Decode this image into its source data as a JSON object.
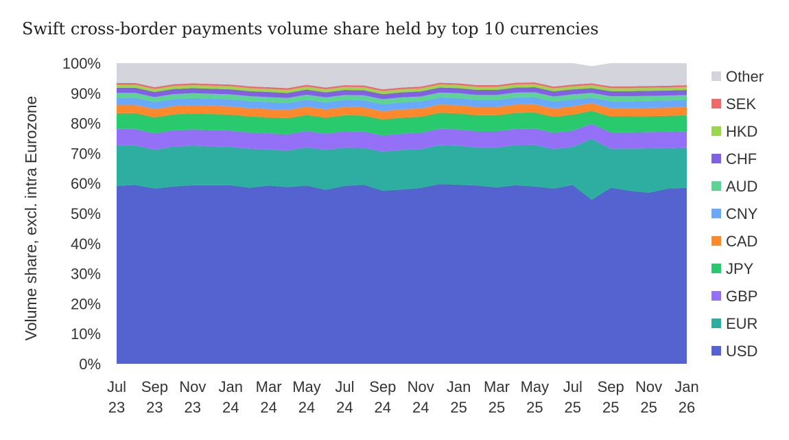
{
  "chart_data": {
    "type": "area",
    "stacked": true,
    "title": "Swift cross-border payments volume share held by top 10 currencies",
    "ylabel": "Volume share, excl. intra Eurozone",
    "xlabel": "",
    "ylim": [
      0,
      100
    ],
    "yticks": [
      "0%",
      "10%",
      "20%",
      "30%",
      "40%",
      "50%",
      "60%",
      "70%",
      "80%",
      "90%",
      "100%"
    ],
    "categories": [
      "Jul 23",
      "Aug 23",
      "Sep 23",
      "Oct 23",
      "Nov 23",
      "Dec 23",
      "Jan 24",
      "Feb 24",
      "Mar 24",
      "Apr 24",
      "May 24",
      "Jun 24",
      "Jul 24",
      "Aug 24",
      "Sep 24",
      "Oct 24",
      "Nov 24",
      "Dec 24",
      "Jan 25",
      "Feb 25",
      "Mar 25",
      "Apr 25",
      "May 25",
      "Jun 25",
      "Jul 25",
      "Aug 25",
      "Sep 25",
      "Oct 25",
      "Nov 25",
      "Dec 25",
      "Jan 26"
    ],
    "xticks": [
      [
        "Jul",
        "23"
      ],
      [
        "Sep",
        "23"
      ],
      [
        "Nov",
        "23"
      ],
      [
        "Jan",
        "24"
      ],
      [
        "Mar",
        "24"
      ],
      [
        "May",
        "24"
      ],
      [
        "Jul",
        "24"
      ],
      [
        "Sep",
        "24"
      ],
      [
        "Nov",
        "24"
      ],
      [
        "Jan",
        "25"
      ],
      [
        "Mar",
        "25"
      ],
      [
        "May",
        "25"
      ],
      [
        "Jul",
        "25"
      ],
      [
        "Sep",
        "25"
      ],
      [
        "Nov",
        "25"
      ],
      [
        "Jan",
        "26"
      ]
    ],
    "grid": false,
    "legend_position": "right",
    "series": [
      {
        "name": "USD",
        "color": "#5563d0",
        "values": [
          59.2,
          59.5,
          58.3,
          59.0,
          59.4,
          59.4,
          59.4,
          58.6,
          59.3,
          58.8,
          59.3,
          57.9,
          59.2,
          59.6,
          57.6,
          58.0,
          58.5,
          59.8,
          59.6,
          59.3,
          58.7,
          59.4,
          59.0,
          58.3,
          59.5,
          54.6,
          58.6,
          57.6,
          56.9,
          58.3,
          58.5
        ]
      },
      {
        "name": "EUR",
        "color": "#2eaea0",
        "values": [
          13.5,
          13.2,
          13.0,
          13.3,
          13.2,
          13.0,
          12.8,
          13.0,
          12.0,
          12.2,
          12.8,
          13.3,
          12.8,
          12.3,
          13.0,
          13.2,
          13.0,
          13.0,
          13.0,
          12.7,
          13.3,
          13.4,
          13.9,
          13.2,
          12.7,
          20.3,
          13.0,
          14.0,
          14.8,
          13.5,
          13.5
        ]
      },
      {
        "name": "GBP",
        "color": "#9470f7",
        "values": [
          5.4,
          5.4,
          5.4,
          5.4,
          5.4,
          5.4,
          5.4,
          5.4,
          5.4,
          5.4,
          5.4,
          5.4,
          5.4,
          5.4,
          5.4,
          5.4,
          5.4,
          5.4,
          5.4,
          5.4,
          5.4,
          5.4,
          5.4,
          5.4,
          5.4,
          5.0,
          5.4,
          5.4,
          5.4,
          5.4,
          5.4
        ]
      },
      {
        "name": "JPY",
        "color": "#29c96e",
        "values": [
          5.3,
          5.3,
          5.3,
          5.3,
          5.3,
          5.3,
          5.3,
          5.3,
          5.3,
          5.3,
          5.3,
          5.3,
          5.3,
          5.3,
          5.3,
          5.3,
          5.3,
          5.3,
          5.3,
          5.3,
          5.3,
          5.3,
          5.3,
          5.3,
          5.3,
          4.3,
          5.3,
          5.3,
          5.3,
          5.3,
          5.3
        ]
      },
      {
        "name": "CAD",
        "color": "#fc8a2c",
        "values": [
          2.8,
          2.8,
          2.8,
          2.8,
          2.8,
          2.8,
          2.8,
          2.8,
          2.8,
          2.8,
          2.8,
          2.8,
          2.8,
          2.8,
          2.8,
          2.8,
          2.8,
          2.8,
          2.8,
          2.8,
          2.8,
          2.8,
          2.8,
          2.8,
          2.8,
          2.6,
          2.8,
          2.8,
          2.8,
          2.8,
          2.8
        ]
      },
      {
        "name": "CNY",
        "color": "#6aa8fb",
        "values": [
          2.3,
          2.3,
          2.3,
          2.3,
          2.3,
          2.3,
          2.3,
          2.3,
          2.3,
          2.3,
          2.3,
          2.3,
          2.3,
          2.3,
          2.3,
          2.3,
          2.3,
          2.3,
          2.3,
          2.3,
          2.3,
          2.3,
          2.3,
          2.3,
          2.3,
          1.8,
          2.3,
          2.3,
          2.3,
          2.3,
          2.3
        ]
      },
      {
        "name": "AUD",
        "color": "#5dd493",
        "values": [
          1.6,
          1.6,
          1.6,
          1.6,
          1.6,
          1.6,
          1.6,
          1.6,
          1.6,
          1.6,
          1.6,
          1.6,
          1.6,
          1.6,
          1.6,
          1.6,
          1.6,
          1.6,
          1.6,
          1.6,
          1.6,
          1.6,
          1.6,
          1.6,
          1.6,
          1.5,
          1.6,
          1.6,
          1.6,
          1.6,
          1.6
        ]
      },
      {
        "name": "CHF",
        "color": "#7f62e1",
        "values": [
          1.7,
          1.7,
          1.7,
          1.7,
          1.7,
          1.7,
          1.7,
          1.7,
          1.7,
          1.7,
          1.7,
          1.7,
          1.7,
          1.7,
          1.7,
          1.7,
          1.7,
          1.7,
          1.7,
          1.7,
          1.7,
          1.7,
          1.7,
          1.7,
          1.7,
          1.6,
          1.7,
          1.7,
          1.7,
          1.7,
          1.7
        ]
      },
      {
        "name": "HKD",
        "color": "#9ad650",
        "values": [
          1.0,
          1.0,
          1.0,
          1.0,
          1.0,
          1.0,
          1.0,
          1.0,
          1.0,
          1.0,
          1.0,
          1.0,
          1.0,
          1.0,
          1.0,
          1.0,
          1.0,
          1.0,
          1.0,
          1.0,
          1.0,
          1.0,
          1.0,
          1.0,
          1.0,
          1.0,
          1.0,
          1.0,
          1.0,
          1.0,
          1.0
        ]
      },
      {
        "name": "SEK",
        "color": "#f06a6a",
        "values": [
          0.6,
          0.6,
          0.6,
          0.6,
          0.6,
          0.6,
          0.6,
          0.6,
          0.6,
          0.6,
          0.6,
          0.6,
          0.6,
          0.6,
          0.6,
          0.6,
          0.6,
          0.6,
          0.6,
          0.6,
          0.6,
          0.6,
          0.6,
          0.6,
          0.6,
          0.6,
          0.6,
          0.6,
          0.6,
          0.6,
          0.6
        ]
      },
      {
        "name": "Other",
        "color": "#d4d4dc",
        "values": [
          6.6,
          6.6,
          8.0,
          7.0,
          6.7,
          6.9,
          7.1,
          7.7,
          8.0,
          8.3,
          7.2,
          8.1,
          7.3,
          7.4,
          8.7,
          8.1,
          7.8,
          6.5,
          6.7,
          7.3,
          7.3,
          6.5,
          6.4,
          7.8,
          7.1,
          5.7,
          7.7,
          7.7,
          7.6,
          7.5,
          7.3
        ]
      }
    ]
  }
}
